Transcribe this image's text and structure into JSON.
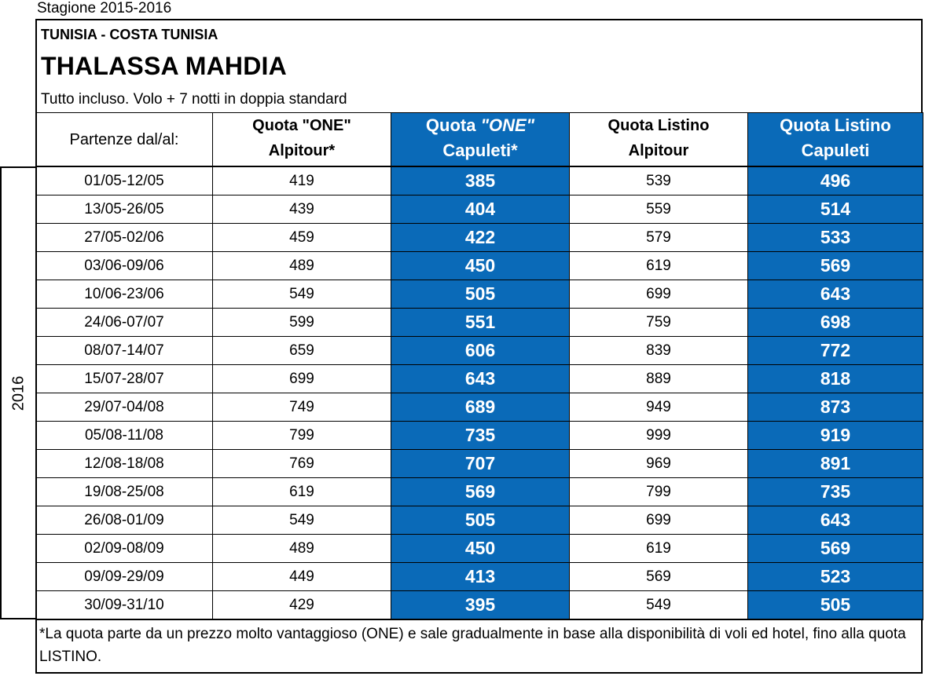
{
  "season": "Stagione 2015-2016",
  "region": "TUNISIA - COSTA TUNISIA",
  "hotel": "THALASSA MAHDIA",
  "subtitle": "Tutto incluso. Volo + 7 notti in doppia standard",
  "year_label": "2016",
  "headers": {
    "col1": "Partenze dal/al:",
    "col2_line1": "Quota \"ONE\"",
    "col2_line2": "Alpitour*",
    "col3_line1_a": "Quota ",
    "col3_line1_b": "\"ONE\"",
    "col3_line2": "Capuleti*",
    "col4_line1": "Quota Listino",
    "col4_line2": "Alpitour",
    "col5_line1": "Quota Listino",
    "col5_line2": "Capuleti"
  },
  "rows": [
    {
      "dates": "01/05-12/05",
      "one_alpitour": "419",
      "one_capuleti": "385",
      "listino_alpitour": "539",
      "listino_capuleti": "496"
    },
    {
      "dates": "13/05-26/05",
      "one_alpitour": "439",
      "one_capuleti": "404",
      "listino_alpitour": "559",
      "listino_capuleti": "514"
    },
    {
      "dates": "27/05-02/06",
      "one_alpitour": "459",
      "one_capuleti": "422",
      "listino_alpitour": "579",
      "listino_capuleti": "533"
    },
    {
      "dates": "03/06-09/06",
      "one_alpitour": "489",
      "one_capuleti": "450",
      "listino_alpitour": "619",
      "listino_capuleti": "569"
    },
    {
      "dates": "10/06-23/06",
      "one_alpitour": "549",
      "one_capuleti": "505",
      "listino_alpitour": "699",
      "listino_capuleti": "643"
    },
    {
      "dates": "24/06-07/07",
      "one_alpitour": "599",
      "one_capuleti": "551",
      "listino_alpitour": "759",
      "listino_capuleti": "698"
    },
    {
      "dates": "08/07-14/07",
      "one_alpitour": "659",
      "one_capuleti": "606",
      "listino_alpitour": "839",
      "listino_capuleti": "772"
    },
    {
      "dates": "15/07-28/07",
      "one_alpitour": "699",
      "one_capuleti": "643",
      "listino_alpitour": "889",
      "listino_capuleti": "818"
    },
    {
      "dates": "29/07-04/08",
      "one_alpitour": "749",
      "one_capuleti": "689",
      "listino_alpitour": "949",
      "listino_capuleti": "873"
    },
    {
      "dates": "05/08-11/08",
      "one_alpitour": "799",
      "one_capuleti": "735",
      "listino_alpitour": "999",
      "listino_capuleti": "919"
    },
    {
      "dates": "12/08-18/08",
      "one_alpitour": "769",
      "one_capuleti": "707",
      "listino_alpitour": "969",
      "listino_capuleti": "891"
    },
    {
      "dates": "19/08-25/08",
      "one_alpitour": "619",
      "one_capuleti": "569",
      "listino_alpitour": "799",
      "listino_capuleti": "735"
    },
    {
      "dates": "26/08-01/09",
      "one_alpitour": "549",
      "one_capuleti": "505",
      "listino_alpitour": "699",
      "listino_capuleti": "643"
    },
    {
      "dates": "02/09-08/09",
      "one_alpitour": "489",
      "one_capuleti": "450",
      "listino_alpitour": "619",
      "listino_capuleti": "569"
    },
    {
      "dates": "09/09-29/09",
      "one_alpitour": "449",
      "one_capuleti": "413",
      "listino_alpitour": "569",
      "listino_capuleti": "523"
    },
    {
      "dates": "30/09-31/10",
      "one_alpitour": "429",
      "one_capuleti": "395",
      "listino_alpitour": "549",
      "listino_capuleti": "505"
    }
  ],
  "note": "*La quota parte da un prezzo molto vantaggioso (ONE) e sale gradualmente in base alla disponibilità di voli ed hotel, fino alla quota LISTINO.",
  "colors": {
    "highlight": "#0a6ab8",
    "highlight_text": "#ffffff"
  }
}
